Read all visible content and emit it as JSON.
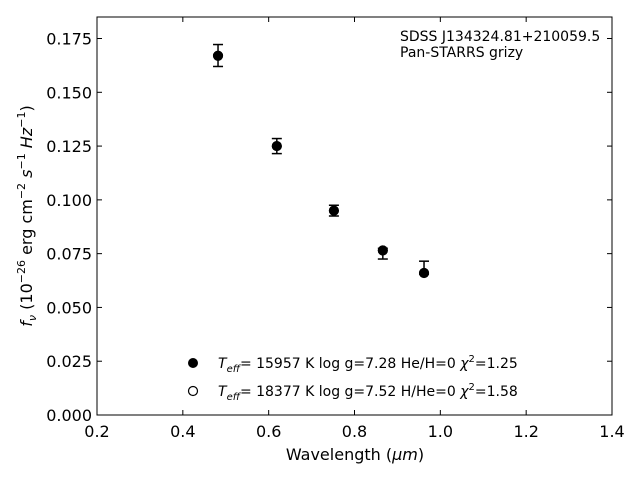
{
  "chart_data": {
    "type": "scatter",
    "xlabel_prefix": "Wavelength (",
    "xlabel_unit": "μm",
    "xlabel_suffix": ")",
    "ylabel_text": "(10",
    "ylabel_exp": "−26",
    "ylabel_units": " erg cm",
    "xlim": [
      0.2,
      1.4
    ],
    "ylim": [
      0.0,
      0.185
    ],
    "xticks": [
      0.2,
      0.4,
      0.6,
      0.8,
      1.0,
      1.2,
      1.4
    ],
    "xtick_labels": [
      "0.2",
      "0.4",
      "0.6",
      "0.8",
      "1.0",
      "1.2",
      "1.4"
    ],
    "yticks": [
      0.0,
      0.025,
      0.05,
      0.075,
      0.1,
      0.125,
      0.15,
      0.175
    ],
    "ytick_labels": [
      "0.000",
      "0.025",
      "0.050",
      "0.075",
      "0.100",
      "0.125",
      "0.150",
      "0.175"
    ],
    "annotation": [
      "SDSS J134324.81+210059.5",
      "Pan-STARRS grizy"
    ],
    "observed": {
      "x": [
        0.482,
        0.619,
        0.752,
        0.866,
        0.962
      ],
      "yerr_low": [
        0.162,
        0.1215,
        0.0925,
        0.0725,
        0.0655
      ],
      "yerr_high": [
        0.1722,
        0.1285,
        0.0975,
        0.0775,
        0.0715
      ]
    },
    "series": [
      {
        "marker": "filled",
        "x": [
          0.482,
          0.619,
          0.752,
          0.866,
          0.962
        ],
        "y": [
          0.167,
          0.125,
          0.095,
          0.0765,
          0.066
        ],
        "legend": "= 15957 K  log g=7.28  He/H=0  χ²=1.25"
      },
      {
        "marker": "open",
        "x": [
          0.482,
          0.619,
          0.752,
          0.866,
          0.962
        ],
        "y": [
          0.167,
          0.125,
          0.095,
          0.0765,
          0.066
        ],
        "legend": "= 18377 K  log g=7.52  H/He=0  χ²=1.58"
      }
    ],
    "legend_labels": [
      {
        "teff_value": "= 15957 K  log g=7.28  He/H=0  ",
        "chi": "=1.25"
      },
      {
        "teff_value": "= 18377 K  log g=7.52  H/He=0  ",
        "chi": "=1.58"
      }
    ]
  }
}
